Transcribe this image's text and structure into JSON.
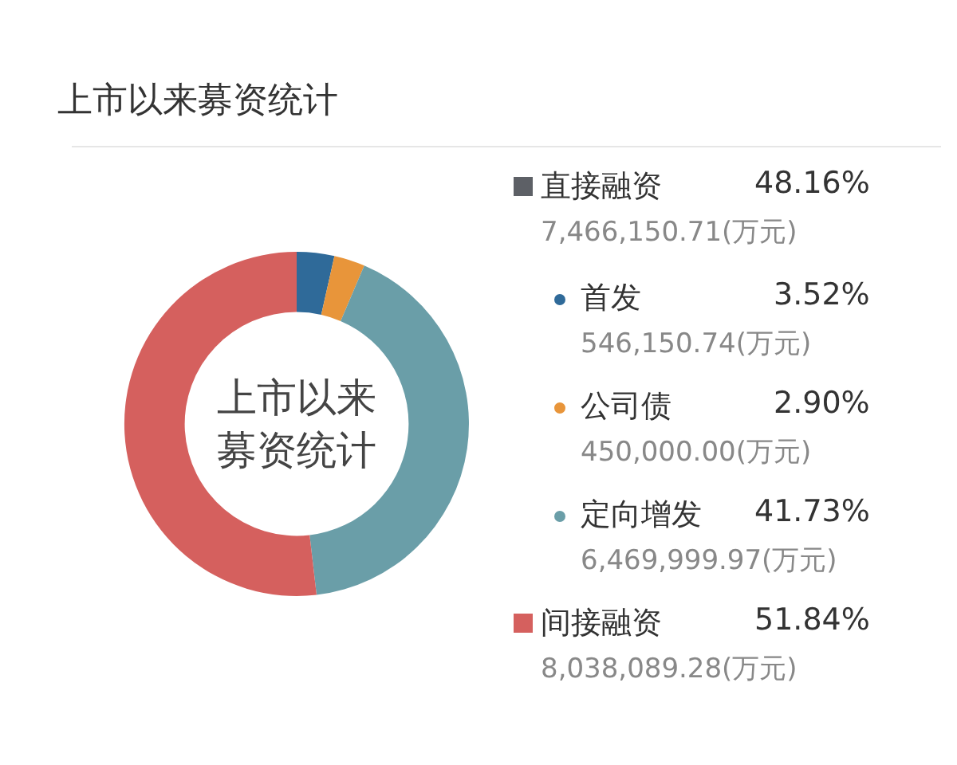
{
  "chart_data": {
    "type": "donut",
    "title": "上市以来募资统计",
    "categories": [
      "首发",
      "公司债",
      "定向增发",
      "间接融资"
    ],
    "values": [
      3.52,
      2.9,
      41.73,
      51.84
    ],
    "value_labels": [
      "3.52%",
      "2.90%",
      "41.73%",
      "51.84%"
    ],
    "colors": [
      "#2f6a99",
      "#e8953a",
      "#6a9ea8",
      "#d5605e"
    ],
    "legend": "right",
    "annotations": [
      "上市以来募资统计",
      "直接融资",
      "48.16%",
      "7,466,150.71(万元)",
      {
        "text": "546,150.74(万元)",
        "x": "首发"
      },
      {
        "text": "450,000.00(万元)",
        "x": "公司债"
      },
      {
        "text": "6,469,999.97(万元)",
        "x": "定向增发"
      },
      {
        "text": "8,038,089.28(万元)",
        "x": "间接融资"
      }
    ]
  }
}
